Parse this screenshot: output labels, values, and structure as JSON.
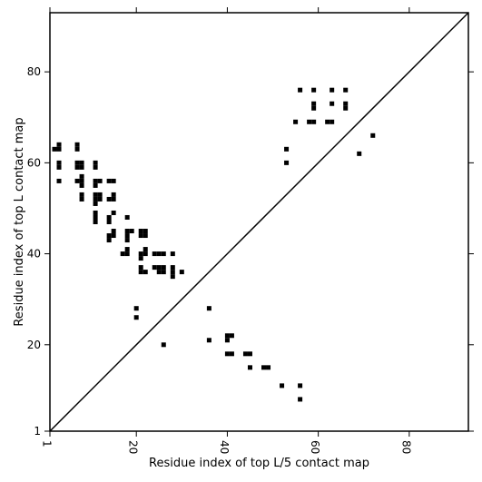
{
  "chart_data": {
    "type": "scatter",
    "title": "",
    "xlabel": "Residue index of top L/5 contact map",
    "ylabel": "Residue index of top L contact map",
    "xlim": [
      1,
      93
    ],
    "ylim": [
      1,
      93
    ],
    "xticks": [
      1,
      20,
      40,
      60,
      80
    ],
    "yticks": [
      1,
      20,
      40,
      60,
      80
    ],
    "diagonal": true,
    "grid": false,
    "marker_color": "#000000",
    "upper_points": [
      [
        2,
        63
      ],
      [
        3,
        63
      ],
      [
        3,
        64
      ],
      [
        3,
        60
      ],
      [
        3,
        59
      ],
      [
        3,
        56
      ],
      [
        7,
        64
      ],
      [
        7,
        63
      ],
      [
        7,
        60
      ],
      [
        8,
        60
      ],
      [
        7,
        59
      ],
      [
        8,
        59
      ],
      [
        7,
        56
      ],
      [
        8,
        57
      ],
      [
        8,
        56
      ],
      [
        8,
        55
      ],
      [
        8,
        53
      ],
      [
        8,
        52
      ],
      [
        11,
        60
      ],
      [
        11,
        59
      ],
      [
        11,
        56
      ],
      [
        11,
        55
      ],
      [
        12,
        56
      ],
      [
        11,
        53
      ],
      [
        12,
        53
      ],
      [
        11,
        52
      ],
      [
        12,
        52
      ],
      [
        11,
        51
      ],
      [
        11,
        49
      ],
      [
        11,
        48
      ],
      [
        11,
        47
      ],
      [
        14,
        56
      ],
      [
        15,
        56
      ],
      [
        14,
        52
      ],
      [
        15,
        53
      ],
      [
        15,
        52
      ],
      [
        14,
        48
      ],
      [
        15,
        49
      ],
      [
        14,
        47
      ],
      [
        15,
        45
      ],
      [
        15,
        44
      ],
      [
        14,
        44
      ],
      [
        14,
        43
      ],
      [
        18,
        48
      ],
      [
        18,
        45
      ],
      [
        19,
        45
      ],
      [
        18,
        44
      ],
      [
        18,
        43
      ],
      [
        17,
        40
      ],
      [
        18,
        41
      ],
      [
        18,
        40
      ],
      [
        21,
        45
      ],
      [
        22,
        45
      ],
      [
        21,
        44
      ],
      [
        22,
        44
      ],
      [
        21,
        40
      ],
      [
        22,
        41
      ],
      [
        22,
        40
      ],
      [
        21,
        39
      ],
      [
        21,
        37
      ],
      [
        21,
        36
      ],
      [
        22,
        36
      ],
      [
        24,
        40
      ],
      [
        25,
        40
      ],
      [
        26,
        40
      ],
      [
        28,
        40
      ],
      [
        24,
        37
      ],
      [
        25,
        37
      ],
      [
        26,
        37
      ],
      [
        25,
        36
      ],
      [
        26,
        36
      ],
      [
        28,
        37
      ],
      [
        28,
        36
      ],
      [
        28,
        35
      ],
      [
        30,
        36
      ],
      [
        20,
        28
      ],
      [
        20,
        26
      ],
      [
        53,
        63
      ],
      [
        53,
        60
      ],
      [
        55,
        69
      ],
      [
        56,
        76
      ],
      [
        58,
        69
      ],
      [
        59,
        69
      ],
      [
        59,
        76
      ],
      [
        59,
        73
      ],
      [
        59,
        72
      ],
      [
        62,
        69
      ],
      [
        63,
        69
      ],
      [
        63,
        76
      ],
      [
        63,
        73
      ],
      [
        66,
        76
      ],
      [
        66,
        73
      ],
      [
        66,
        72
      ]
    ],
    "lower_points": [
      [
        26,
        20
      ],
      [
        36,
        28
      ],
      [
        36,
        21
      ],
      [
        40,
        22
      ],
      [
        41,
        22
      ],
      [
        40,
        21
      ],
      [
        40,
        18
      ],
      [
        41,
        18
      ],
      [
        44,
        18
      ],
      [
        45,
        18
      ],
      [
        45,
        15
      ],
      [
        48,
        15
      ],
      [
        49,
        15
      ],
      [
        52,
        11
      ],
      [
        56,
        11
      ],
      [
        56,
        8
      ],
      [
        69,
        62
      ],
      [
        72,
        66
      ]
    ]
  }
}
